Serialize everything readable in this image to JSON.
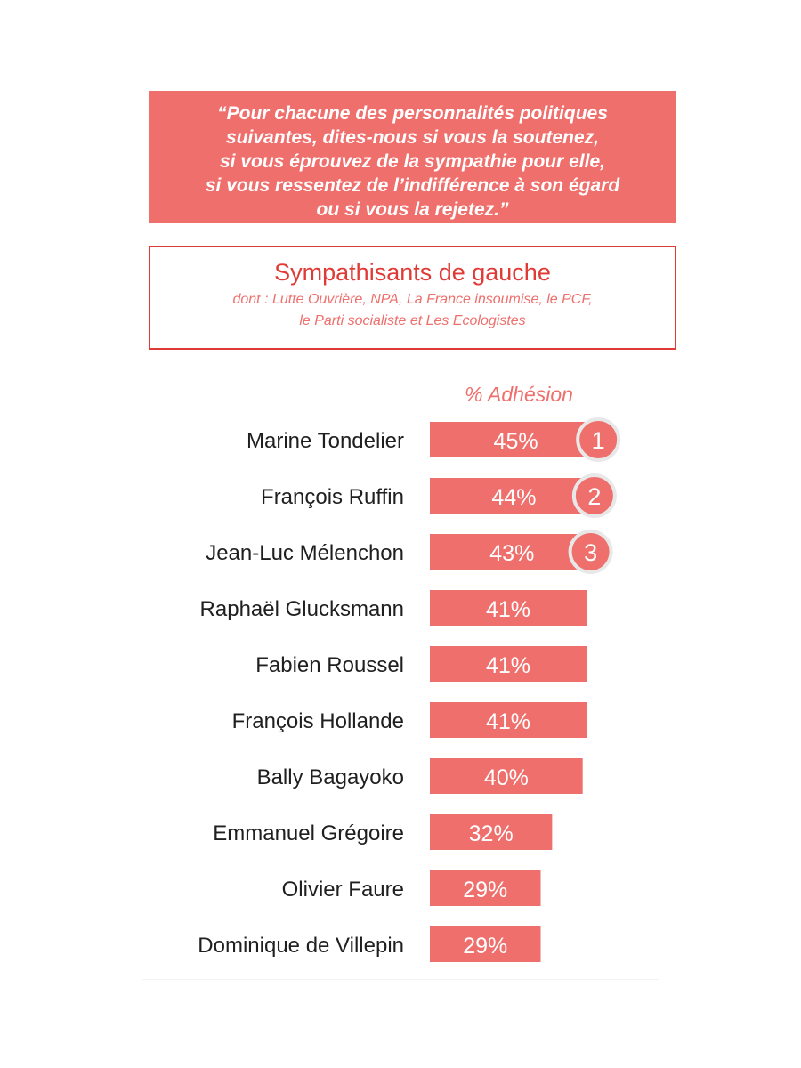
{
  "question": {
    "lines": [
      "“Pour chacune des personnalités politiques",
      "suivantes, dites-nous si vous la soutenez,",
      "si vous éprouvez de la sympathie pour elle,",
      "si vous ressentez de l’indifférence à son égard",
      "ou si vous la rejetez.”"
    ]
  },
  "group": {
    "title": "Sympathisants de gauche",
    "subtitle_lines": [
      "dont : Lutte Ouvrière, NPA, La France insoumise, le PCF,",
      "le Parti socialiste et Les Ecologistes"
    ]
  },
  "colors": {
    "bar": "#ee6f6c",
    "accent": "#e03a36",
    "text": "#1f1f1f",
    "rank_circle_fill": "#ee6f6c",
    "rank_circle_stroke": "#e8e8e8"
  },
  "chart_data": {
    "type": "bar",
    "orientation": "horizontal",
    "column_header": "% Adhésion",
    "categories": [
      "Marine Tondelier",
      "François Ruffin",
      "Jean-Luc Mélenchon",
      "Raphaël Glucksmann",
      "Fabien Roussel",
      "François Hollande",
      "Bally Bagayoko",
      "Emmanuel Grégoire",
      "Olivier Faure",
      "Dominique de Villepin"
    ],
    "values": [
      45,
      44,
      43,
      41,
      41,
      41,
      40,
      32,
      29,
      29
    ],
    "value_labels": [
      "45%",
      "44%",
      "43%",
      "41%",
      "41%",
      "41%",
      "40%",
      "32%",
      "29%",
      "29%"
    ],
    "ranks": [
      {
        "index": 0,
        "label": "1"
      },
      {
        "index": 1,
        "label": "2"
      },
      {
        "index": 2,
        "label": "3"
      }
    ]
  }
}
